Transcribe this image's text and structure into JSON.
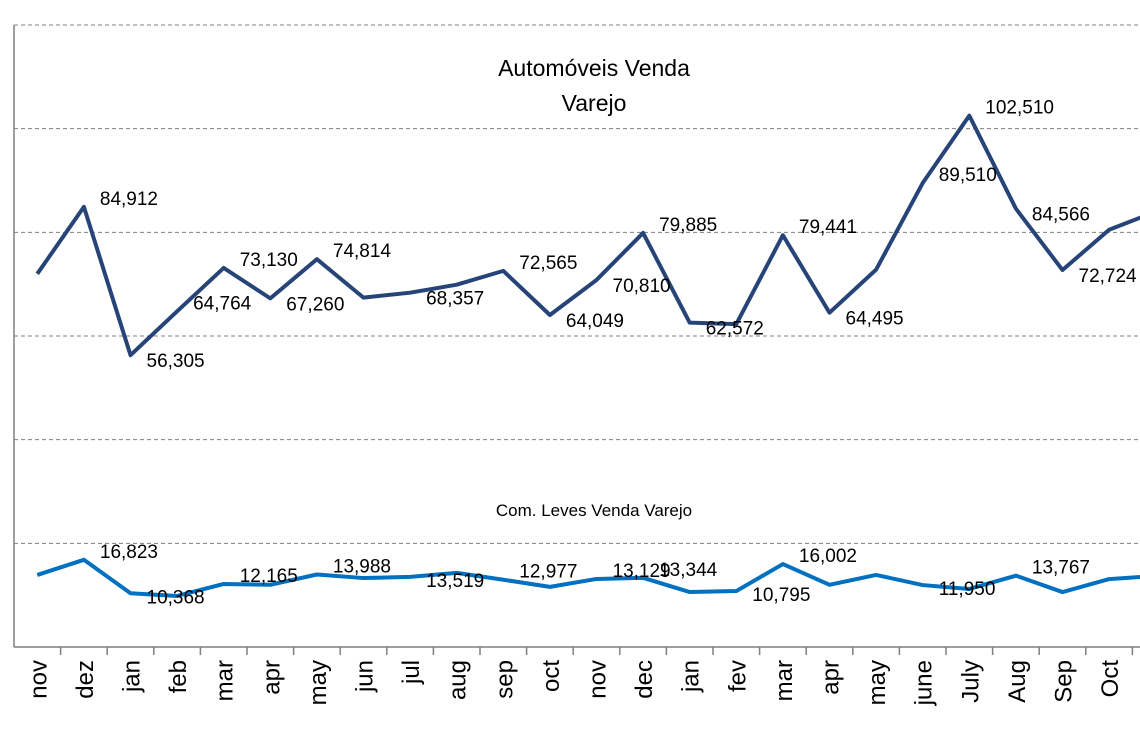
{
  "chart_data": {
    "type": "line",
    "annotations": [
      "Automóveis Venda",
      "Varejo",
      "Com. Leves Venda Varejo"
    ],
    "categories": [
      "nov",
      "dez",
      "jan",
      "feb",
      "mar",
      "apr",
      "may",
      "jun",
      "jul",
      "aug",
      "sep",
      "oct",
      "nov",
      "dec",
      "jan",
      "fev",
      "mar",
      "apr",
      "may",
      "june",
      "July",
      "Aug",
      "Sep",
      "Oct",
      null
    ],
    "ylim": [
      0,
      120000
    ],
    "yticks": [
      0,
      20000,
      40000,
      60000,
      80000,
      100000,
      120000
    ],
    "grid": true,
    "series": [
      {
        "color": "#264478",
        "values": [
          72000,
          84912,
          56305,
          64764,
          73130,
          67260,
          74814,
          67400,
          68357,
          69900,
          72565,
          64049,
          70810,
          79885,
          62572,
          62300,
          79441,
          64495,
          72800,
          89510,
          102510,
          84566,
          72724,
          80500,
          84000
        ],
        "value_labels": [
          null,
          "84,912",
          "56,305",
          "64,764",
          "73,130",
          "67,260",
          "74,814",
          null,
          "68,357",
          null,
          "72,565",
          "64,049",
          "70,810",
          "79,885",
          "62,572",
          null,
          "79,441",
          "64,495",
          null,
          "89,510",
          "102,510",
          "84,566",
          "72,724",
          null,
          null
        ]
      },
      {
        "color": "#0070c0",
        "values": [
          13900,
          16823,
          10368,
          9850,
          12165,
          12000,
          13988,
          13300,
          13519,
          14300,
          12977,
          11600,
          13129,
          13344,
          10600,
          10795,
          16002,
          12000,
          13900,
          11950,
          11200,
          13767,
          10600,
          13100,
          13700
        ],
        "value_labels": [
          null,
          "16,823",
          "10,368",
          null,
          "12,165",
          null,
          "13,988",
          null,
          "13,519",
          null,
          "12,977",
          null,
          "13,129",
          "13,344",
          null,
          "10,795",
          "16,002",
          null,
          null,
          "11,950",
          null,
          "13,767",
          null,
          null,
          null
        ]
      }
    ]
  }
}
